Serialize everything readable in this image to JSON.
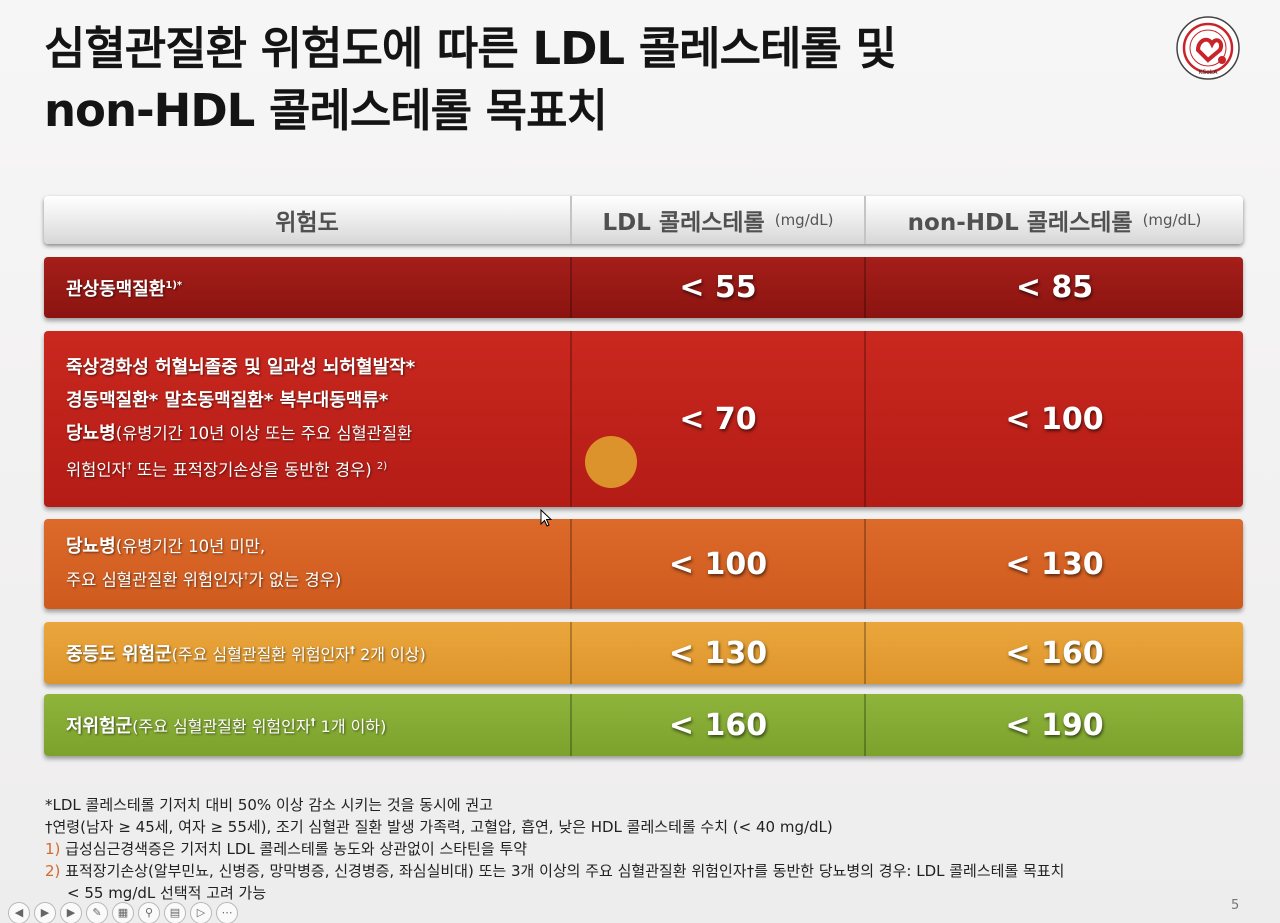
{
  "title": {
    "line1": "심혈관질환 위험도에 따른 LDL 콜레스테롤 및",
    "line2": "non-HDL 콜레스테롤 목표치"
  },
  "logo": {
    "icon": "ksola-logo",
    "text": "KSoLA",
    "ring_text": "Korean Society of Lipid and Atherosclerosis",
    "color": "#c8242a"
  },
  "table": {
    "header": {
      "risk": "위험도",
      "ldl": "LDL 콜레스테롤",
      "ldl_unit": "(mg/dL)",
      "nonhdl": "non-HDL 콜레스테롤",
      "nonhdl_unit": "(mg/dL)"
    },
    "rows": [
      {
        "label": "관상동맥질환",
        "sup": "1)*",
        "ldl": "< 55",
        "nonhdl": "< 85",
        "color": "#9a1a16"
      },
      {
        "line1": "죽상경화성 허혈뇌졸중 및 일과성 뇌허혈발작*",
        "line2": "경동맥질환*  말초동맥질환*  복부대동맥류*",
        "line3_bold": "당뇨병",
        "line3_rest": "(유병기간 10년 이상 또는 주요 심혈관질환",
        "line4_a": "위험인자",
        "line4_dagger": "†",
        "line4_b": " 또는 표적장기손상을 동반한 경우)",
        "line4_sup": "2)",
        "ldl": "< 70",
        "nonhdl": "< 100",
        "color": "#be221a"
      },
      {
        "line1_bold": "당뇨병",
        "line1_rest": "(유병기간 10년 미만,",
        "line2_a": "주요 심혈관질환 위험인자",
        "line2_dagger": "†",
        "line2_b": "가 없는 경우)",
        "ldl": "< 100",
        "nonhdl": "< 130",
        "color": "#d56224"
      },
      {
        "label": "중등도 위험군",
        "detail_a": "(주요 심혈관질환 위험인자",
        "dagger": "†",
        "detail_b": " 2개 이상)",
        "ldl": "< 130",
        "nonhdl": "< 160",
        "color": "#e49e34"
      },
      {
        "label": "저위험군",
        "detail_a": "(주요 심혈관질환 위험인자",
        "dagger": "†",
        "detail_b": " 1개 이하)",
        "ldl": "< 160",
        "nonhdl": "< 190",
        "color": "#86ab34"
      }
    ]
  },
  "notes": {
    "n1": "*LDL 콜레스테롤 기저치 대비 50% 이상 감소 시키는 것을 동시에 권고",
    "n2": "†연령(남자 ≥ 45세, 여자 ≥ 55세), 조기 심혈관 질환 발생 가족력, 고혈압, 흡연, 낮은 HDL 콜레스테롤 수치 (< 40 mg/dL)",
    "n3_marker": "1)",
    "n3": " 급성심근경색증은 기저치 LDL 콜레스테롤 농도와 상관없이 스타틴을 투약",
    "n4_marker": "2)",
    "n4": " 표적장기손상(알부민뇨, 신병증, 망막병증, 신경병증, 좌심실비대) 또는 3개 이상의 주요 심혈관질환 위험인자†를 동반한 당뇨병의 경우: LDL 콜레스테롤 목표치",
    "n4_cont": "< 55 mg/dL 선택적 고려 가능"
  },
  "page_number": "5",
  "toolbar": {
    "icons": [
      "previous-icon",
      "play-icon",
      "next-icon",
      "pen-icon",
      "slides-icon",
      "zoom-icon",
      "subtitle-icon",
      "camera-icon",
      "more-icon"
    ]
  }
}
